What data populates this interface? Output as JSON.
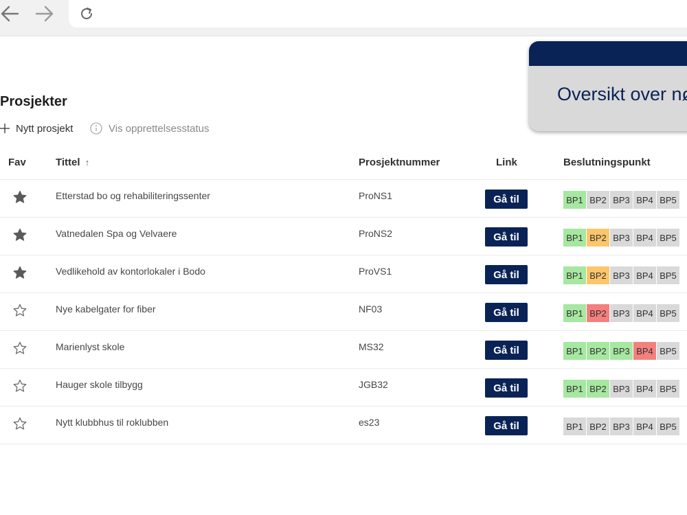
{
  "browser": {
    "back_icon": "arrow-left-icon",
    "forward_icon": "arrow-right-icon",
    "reload_icon": "reload-icon"
  },
  "overview_card": {
    "text": "Oversikt over nø"
  },
  "page": {
    "title": "Prosjekter",
    "actions": {
      "new_project": "Nytt prosjekt",
      "show_status": "Vis opprettelsesstatus"
    }
  },
  "table": {
    "columns": {
      "fav": "Fav",
      "title": "Tittel",
      "title_sort": "↑",
      "number": "Prosjektnummer",
      "link": "Link",
      "decision": "Beslutningspunkt"
    },
    "button_label": "Gå til",
    "bp_labels": [
      "BP1",
      "BP2",
      "BP3",
      "BP4",
      "BP5"
    ],
    "status_colors": {
      "green": "#a6e7a1",
      "orange": "#fbc66a",
      "red": "#f3807e",
      "grey": "#d9d9d9"
    },
    "rows": [
      {
        "favorite": true,
        "title": "Etterstad bo og rehabiliteringssenter",
        "number": "ProNS1",
        "bp": [
          "green",
          "grey",
          "grey",
          "grey",
          "grey"
        ]
      },
      {
        "favorite": true,
        "title": "Vatnedalen Spa og Velvaere",
        "number": "ProNS2",
        "bp": [
          "green",
          "orange",
          "grey",
          "grey",
          "grey"
        ]
      },
      {
        "favorite": true,
        "title": "Vedlikehold av kontorlokaler i Bodo",
        "number": "ProVS1",
        "bp": [
          "green",
          "orange",
          "grey",
          "grey",
          "grey"
        ]
      },
      {
        "favorite": false,
        "title": "Nye kabelgater for fiber",
        "number": "NF03",
        "bp": [
          "green",
          "red",
          "grey",
          "grey",
          "grey"
        ]
      },
      {
        "favorite": false,
        "title": "Marienlyst skole",
        "number": "MS32",
        "bp": [
          "green",
          "green",
          "green",
          "red",
          "grey"
        ]
      },
      {
        "favorite": false,
        "title": "Hauger skole tilbygg",
        "number": "JGB32",
        "bp": [
          "green",
          "green",
          "grey",
          "grey",
          "grey"
        ]
      },
      {
        "favorite": false,
        "title": "Nytt klubbhus til roklubben",
        "number": "es23",
        "bp": [
          "grey",
          "grey",
          "grey",
          "grey",
          "grey"
        ]
      }
    ]
  }
}
